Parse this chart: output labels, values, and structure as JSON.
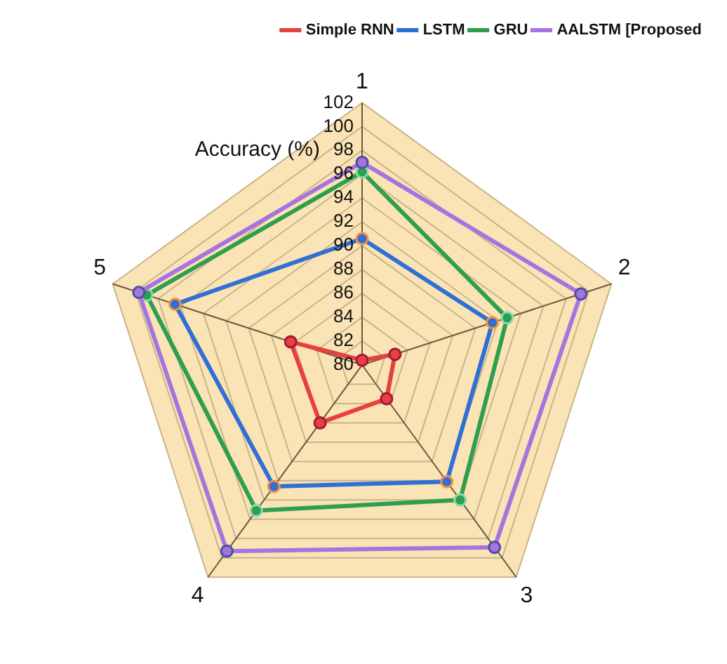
{
  "chart_data": {
    "type": "radar",
    "ylabel": "Accuracy (%)",
    "categories": [
      "1",
      "2",
      "3",
      "4",
      "5"
    ],
    "series": [
      {
        "name": "Simple RNN",
        "color": "#e8403c",
        "values": [
          80.4,
          82.9,
          83.5,
          86,
          86.3
        ]
      },
      {
        "name": "LSTM",
        "color": "#2f6fd6",
        "values": [
          90.6,
          91.5,
          92.1,
          92.6,
          96.5
        ]
      },
      {
        "name": "GRU",
        "color": "#2f9e4f",
        "values": [
          96.2,
          92.8,
          94,
          95.1,
          99
        ]
      },
      {
        "name": "AALSTM [Proposed",
        "color": "#a773e0",
        "values": [
          97,
          99.3,
          98.9,
          99.3,
          99.7
        ]
      }
    ],
    "ylim": [
      80,
      102
    ],
    "yticks": [
      80,
      82,
      84,
      86,
      88,
      90,
      92,
      94,
      96,
      98,
      100,
      102
    ],
    "grid": true,
    "legend": "top right",
    "marker": "circle",
    "line_style": "solid"
  }
}
